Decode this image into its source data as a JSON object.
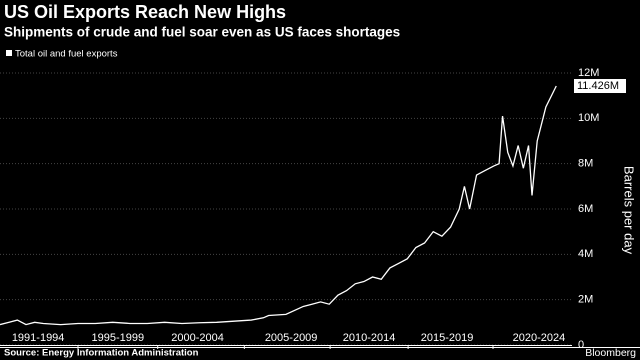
{
  "chart_data": {
    "type": "line",
    "title": "US Oil Exports Reach New Highs",
    "subtitle": "Shipments of crude and fuel soar even as US faces shortages",
    "y_label": "Barrels per day",
    "source": "Source: Energy Information Administration",
    "brand": "Bloomberg",
    "xlim": [
      1990.5,
      2022.7
    ],
    "xticks": [
      {
        "value": 1992.7,
        "label": "1991-1994"
      },
      {
        "value": 1997.3,
        "label": "1995-1999"
      },
      {
        "value": 2001.9,
        "label": "2000-2004"
      },
      {
        "value": 2007.3,
        "label": "2005-2009"
      },
      {
        "value": 2011.8,
        "label": "2010-2014"
      },
      {
        "value": 2016.3,
        "label": "2015-2019"
      },
      {
        "value": 2021.6,
        "label": "2020-2024"
      }
    ],
    "ylim": [
      0,
      12000000
    ],
    "yticks": [
      0,
      {
        "value": 2000000,
        "label": "2M"
      },
      {
        "value": 4000000,
        "label": "4M"
      },
      {
        "value": 6000000,
        "label": "6M"
      },
      {
        "value": 8000000,
        "label": "8M"
      },
      {
        "value": 10000000,
        "label": "10M"
      },
      {
        "value": 12000000,
        "label": "12M"
      }
    ],
    "grid": true,
    "x": [
      1990.5,
      1991,
      1991.5,
      1992,
      1992.5,
      1993,
      1994,
      1995,
      1996,
      1997,
      1998,
      1999,
      2000,
      2001,
      2002,
      2003,
      2004,
      2005,
      2005.7,
      2006,
      2007,
      2008,
      2008.5,
      2009,
      2009.5,
      2010,
      2010.5,
      2011,
      2011.5,
      2012,
      2012.5,
      2013,
      2013.5,
      2014,
      2014.5,
      2015,
      2015.5,
      2016,
      2016.5,
      2017,
      2017.3,
      2017.6,
      2018,
      2018.5,
      2019,
      2019.3,
      2019.5,
      2019.8,
      2020.1,
      2020.4,
      2020.7,
      2021,
      2021.2,
      2021.5,
      2022,
      2022.6
    ],
    "series": [
      {
        "name": "Total oil and fuel exports",
        "color": "#ffffff",
        "values": [
          900000,
          1000000,
          1100000,
          900000,
          1000000,
          950000,
          900000,
          950000,
          950000,
          1000000,
          950000,
          950000,
          1000000,
          950000,
          980000,
          1000000,
          1050000,
          1100000,
          1200000,
          1300000,
          1350000,
          1700000,
          1800000,
          1900000,
          1800000,
          2200000,
          2400000,
          2700000,
          2800000,
          3000000,
          2900000,
          3400000,
          3600000,
          3800000,
          4300000,
          4500000,
          5000000,
          4800000,
          5200000,
          6000000,
          7000000,
          6000000,
          7500000,
          7700000,
          7900000,
          8000000,
          10100000,
          8500000,
          7900000,
          8800000,
          7800000,
          8800000,
          6600000,
          9000000,
          10500000,
          11426000
        ]
      }
    ],
    "annotation": {
      "value": 11426000,
      "label": "11.426M"
    }
  }
}
